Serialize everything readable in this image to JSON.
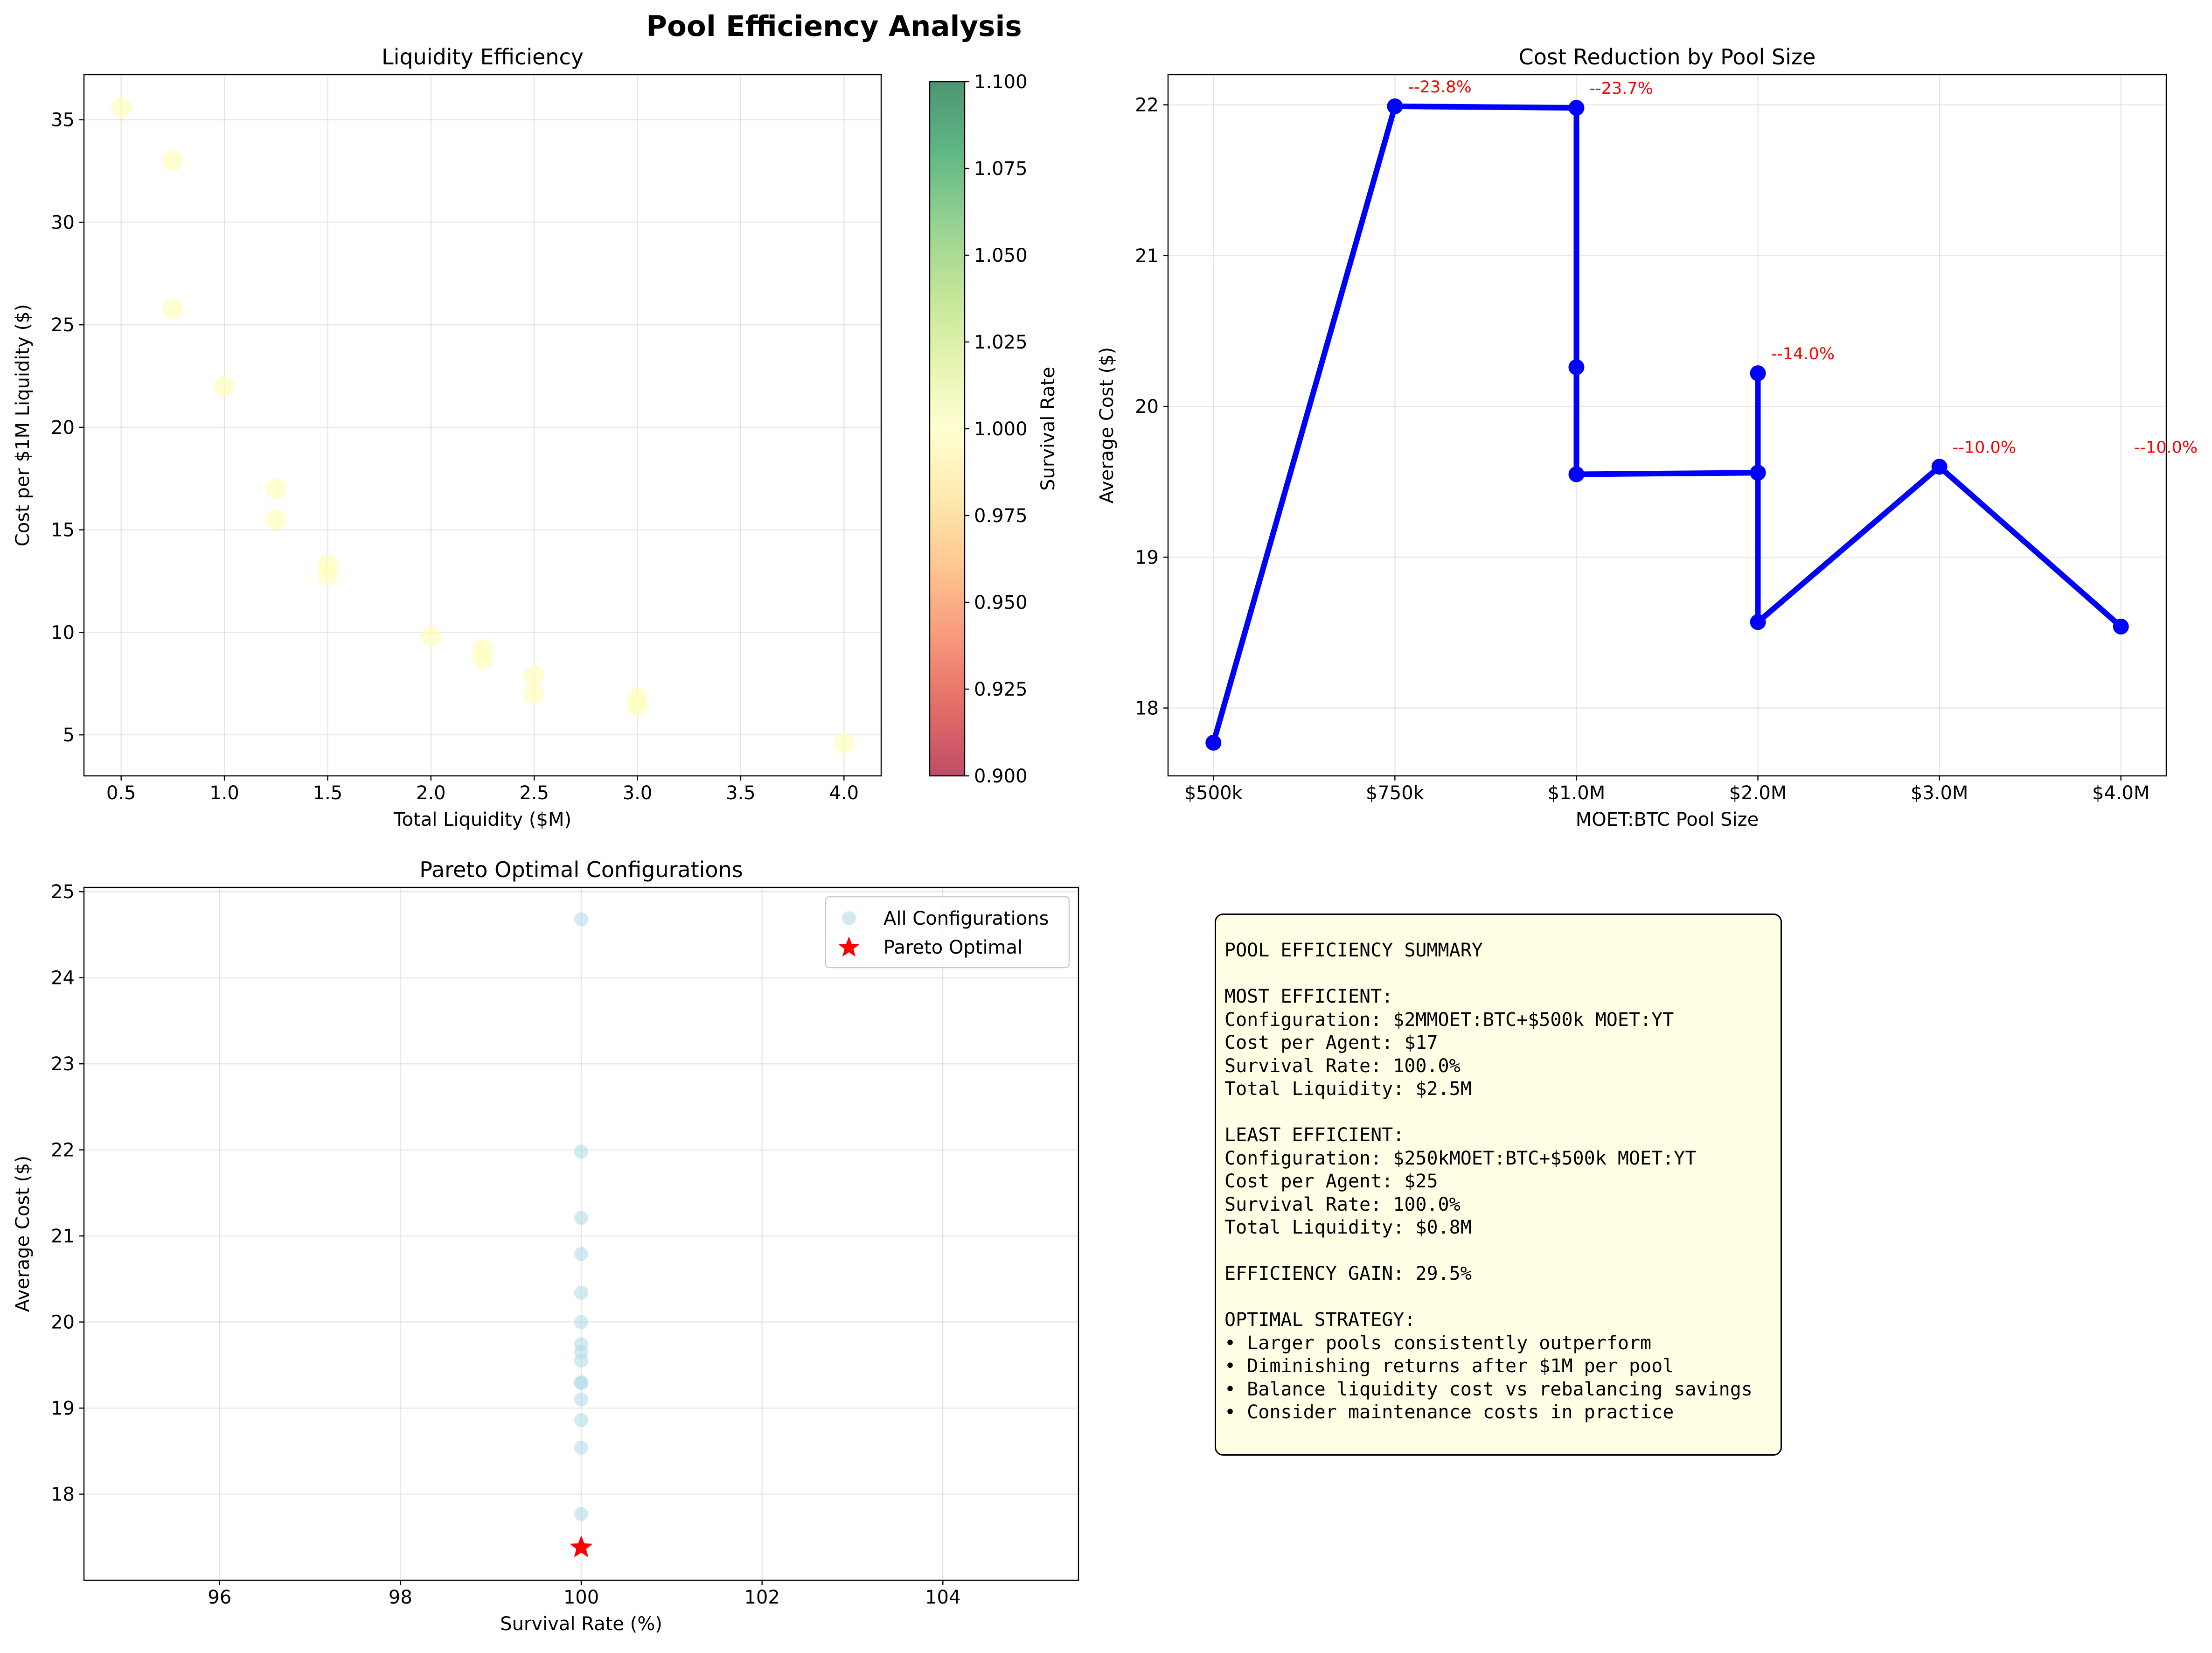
{
  "figure_title": "Pool Efficiency Analysis",
  "colors": {
    "line": "#0000ff",
    "annotation": "#ff0000",
    "scatter_light": "#add8e6",
    "pareto": "#ff0000",
    "bubble": "#fefebd"
  },
  "chart_data": [
    {
      "type": "scatter",
      "title": "Liquidity Efficiency",
      "xlabel": "Total Liquidity ($M)",
      "ylabel": "Cost per $1M Liquidity ($)",
      "xlim": [
        0.32,
        4.18
      ],
      "ylim": [
        3.0,
        37.2
      ],
      "xticks": [
        0.5,
        1.0,
        1.5,
        2.0,
        2.5,
        3.0,
        3.5,
        4.0
      ],
      "xtick_labels": [
        "0.5",
        "1.0",
        "1.5",
        "2.0",
        "2.5",
        "3.0",
        "3.5",
        "4.0"
      ],
      "yticks": [
        5,
        10,
        15,
        20,
        25,
        30,
        35
      ],
      "ytick_labels": [
        "5",
        "10",
        "15",
        "20",
        "25",
        "30",
        "35"
      ],
      "grid": true,
      "points": [
        {
          "x": 0.5,
          "y": 35.6
        },
        {
          "x": 0.75,
          "y": 33.0
        },
        {
          "x": 0.75,
          "y": 25.8
        },
        {
          "x": 1.0,
          "y": 22.0
        },
        {
          "x": 1.25,
          "y": 17.0
        },
        {
          "x": 1.25,
          "y": 15.5
        },
        {
          "x": 1.5,
          "y": 13.3
        },
        {
          "x": 1.5,
          "y": 12.8
        },
        {
          "x": 2.0,
          "y": 9.8
        },
        {
          "x": 2.25,
          "y": 9.2
        },
        {
          "x": 2.25,
          "y": 8.7
        },
        {
          "x": 2.5,
          "y": 7.9
        },
        {
          "x": 2.5,
          "y": 7.0
        },
        {
          "x": 3.0,
          "y": 6.8
        },
        {
          "x": 3.0,
          "y": 6.4
        },
        {
          "x": 4.0,
          "y": 4.6
        }
      ],
      "colorbar": {
        "label": "Survival Rate",
        "range": [
          0.9,
          1.1
        ],
        "ticks": [
          "0.900",
          "0.925",
          "0.950",
          "0.975",
          "1.000",
          "1.025",
          "1.050",
          "1.075",
          "1.100"
        ]
      }
    },
    {
      "type": "line",
      "title": "Cost Reduction by Pool Size",
      "xlabel": "MOET:BTC Pool Size",
      "ylabel": "Average Cost ($)",
      "categories": [
        "$500k",
        "$750k",
        "$1.0M",
        "$2.0M",
        "$3.0M",
        "$4.0M"
      ],
      "ylim": [
        17.55,
        22.2
      ],
      "yticks": [
        18,
        19,
        20,
        21,
        22
      ],
      "ytick_labels": [
        "18",
        "19",
        "20",
        "21",
        "22"
      ],
      "grid": true,
      "points": [
        {
          "x": 0,
          "y": 17.77
        },
        {
          "x": 1,
          "y": 21.99
        },
        {
          "x": 2,
          "y": 21.98
        },
        {
          "x": 2,
          "y": 20.26
        },
        {
          "x": 2,
          "y": 19.55
        },
        {
          "x": 3,
          "y": 19.56
        },
        {
          "x": 3,
          "y": 20.22
        },
        {
          "x": 3,
          "y": 19.56
        },
        {
          "x": 3,
          "y": 18.57
        },
        {
          "x": 4,
          "y": 19.6
        },
        {
          "x": 5,
          "y": 18.54
        }
      ],
      "annotations": [
        {
          "x": 1,
          "y": 21.99,
          "text": "--23.8%"
        },
        {
          "x": 2,
          "y": 21.98,
          "text": "--23.7%"
        },
        {
          "x": 3,
          "y": 20.22,
          "text": "--14.0%"
        },
        {
          "x": 4,
          "y": 19.6,
          "text": "--10.0%"
        },
        {
          "x": 5,
          "y": 19.6,
          "text": "--10.0%"
        }
      ]
    },
    {
      "type": "scatter",
      "title": "Pareto Optimal Configurations",
      "xlabel": "Survival Rate (%)",
      "ylabel": "Average Cost ($)",
      "xlim": [
        94.5,
        105.5
      ],
      "ylim": [
        17.0,
        25.05
      ],
      "xticks": [
        96,
        98,
        100,
        102,
        104
      ],
      "xtick_labels": [
        "96",
        "98",
        "100",
        "102",
        "104"
      ],
      "yticks": [
        18,
        19,
        20,
        21,
        22,
        23,
        24,
        25
      ],
      "ytick_labels": [
        "18",
        "19",
        "20",
        "21",
        "22",
        "23",
        "24",
        "25"
      ],
      "grid": true,
      "legend_position": "top-right",
      "series": [
        {
          "name": "All Configurations",
          "points": [
            {
              "x": 100,
              "y": 24.68
            },
            {
              "x": 100,
              "y": 21.98
            },
            {
              "x": 100,
              "y": 21.21
            },
            {
              "x": 100,
              "y": 20.79
            },
            {
              "x": 100,
              "y": 20.34
            },
            {
              "x": 100,
              "y": 20.0
            },
            {
              "x": 100,
              "y": 19.74
            },
            {
              "x": 100,
              "y": 19.65
            },
            {
              "x": 100,
              "y": 19.55
            },
            {
              "x": 100,
              "y": 19.3
            },
            {
              "x": 100,
              "y": 19.29
            },
            {
              "x": 100,
              "y": 19.1
            },
            {
              "x": 100,
              "y": 18.86
            },
            {
              "x": 100,
              "y": 18.54
            },
            {
              "x": 100,
              "y": 17.77
            }
          ]
        },
        {
          "name": "Pareto Optimal",
          "points": [
            {
              "x": 100,
              "y": 17.38
            }
          ]
        }
      ]
    }
  ],
  "summary": {
    "lines": [
      "POOL EFFICIENCY SUMMARY",
      "",
      "MOST EFFICIENT:",
      "Configuration: $2MMOET:BTC+$500k MOET:YT",
      "Cost per Agent: $17",
      "Survival Rate: 100.0%",
      "Total Liquidity: $2.5M",
      "",
      "LEAST EFFICIENT:",
      "Configuration: $250kMOET:BTC+$500k MOET:YT",
      "Cost per Agent: $25",
      "Survival Rate: 100.0%",
      "Total Liquidity: $0.8M",
      "",
      "EFFICIENCY GAIN: 29.5%",
      "",
      "OPTIMAL STRATEGY:",
      "• Larger pools consistently outperform",
      "• Diminishing returns after $1M per pool",
      "• Balance liquidity cost vs rebalancing savings",
      "• Consider maintenance costs in practice"
    ]
  }
}
